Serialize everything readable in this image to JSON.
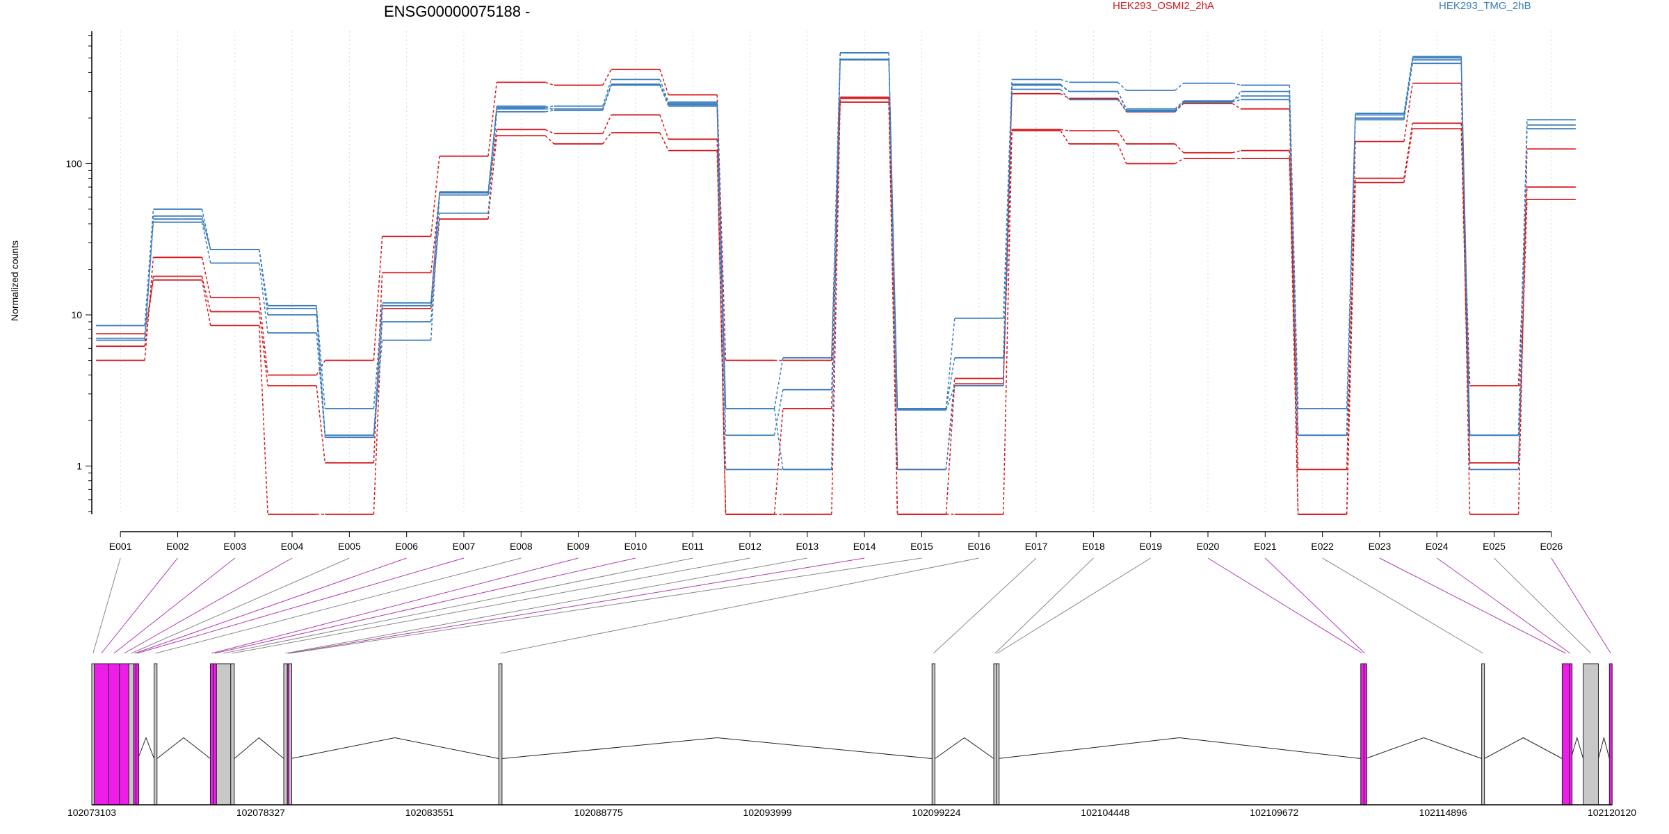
{
  "chart_data": {
    "type": "line",
    "title": "ENSG00000075188 -",
    "ylabel": "Normalized counts",
    "xlabel": "",
    "yscale": "log",
    "ylim": [
      0.48,
      750
    ],
    "grid": "vertical dotted at each exon",
    "legend_placement": "top-right",
    "colors": {
      "HEK293_OSMI2_2hA": "#d7191c",
      "HEK293_TMG_2hB": "#3a7dbd",
      "highlight": "#ee1ee8",
      "gray_exon": "#c8c8c8",
      "link_gray": "#888888",
      "link_magenta": "#b13ab1"
    },
    "yticks": [
      {
        "value": 1,
        "label": "1"
      },
      {
        "value": 10,
        "label": "10"
      },
      {
        "value": 100,
        "label": "100"
      }
    ],
    "categories": [
      "E001",
      "E002",
      "E003",
      "E004",
      "E005",
      "E006",
      "E007",
      "E008",
      "E009",
      "E010",
      "E011",
      "E012",
      "E013",
      "E014",
      "E015",
      "E016",
      "E017",
      "E018",
      "E019",
      "E020",
      "E021",
      "E022",
      "E023",
      "E024",
      "E025",
      "E026"
    ],
    "series": [
      {
        "name": "HEK293_OSMI2_2hA",
        "group": "HEK293_OSMI2_2hA",
        "values": [
          5,
          24,
          13,
          4,
          5,
          33,
          112,
          345,
          330,
          420,
          285,
          5,
          5,
          270,
          0.95,
          3.8,
          168,
          165,
          135,
          118,
          122,
          0.95,
          80,
          185,
          3.4,
          70
        ]
      },
      {
        "name": "HEK293_OSMI2_2hA",
        "group": "HEK293_OSMI2_2hA",
        "values": [
          6.2,
          18,
          10.5,
          3.4,
          1.05,
          19,
          62,
          168,
          158,
          210,
          145,
          0.48,
          0.48,
          255,
          0.48,
          0.48,
          165,
          135,
          100,
          108,
          108,
          0.48,
          75,
          170,
          1.05,
          58
        ]
      },
      {
        "name": "HEK293_OSMI2_2hA",
        "group": "HEK293_OSMI2_2hA",
        "values": [
          7.5,
          17,
          8.5,
          0.48,
          0.48,
          11,
          43,
          153,
          135,
          160,
          122,
          0.48,
          2.4,
          275,
          0.48,
          3.5,
          290,
          270,
          220,
          250,
          230,
          0.48,
          140,
          340,
          0.48,
          125
        ]
      },
      {
        "name": "HEK293_TMG_2hB",
        "group": "HEK293_TMG_2hB",
        "values": [
          8.5,
          50,
          27,
          11.5,
          2.4,
          12,
          64,
          235,
          240,
          360,
          255,
          2.4,
          5.2,
          540,
          2.4,
          9.5,
          360,
          345,
          305,
          340,
          330,
          2.4,
          215,
          510,
          1.6,
          195
        ]
      },
      {
        "name": "HEK293_TMG_2hB",
        "group": "HEK293_TMG_2hB",
        "values": [
          8.5,
          45,
          27,
          10,
          1.6,
          11.5,
          65,
          230,
          230,
          335,
          250,
          1.6,
          3.2,
          485,
          2.4,
          5.2,
          330,
          300,
          230,
          260,
          280,
          1.6,
          210,
          485,
          1.6,
          180
        ]
      },
      {
        "name": "HEK293_TMG_2hB",
        "group": "HEK293_TMG_2hB",
        "values": [
          7,
          41,
          22,
          7.6,
          1.55,
          9,
          47,
          220,
          225,
          330,
          240,
          0.95,
          0.95,
          490,
          2.35,
          3.4,
          310,
          265,
          222,
          255,
          265,
          1.6,
          195,
          460,
          1.6,
          170
        ]
      },
      {
        "name": "HEK293_TMG_2hB",
        "group": "HEK293_TMG_2hB",
        "values": [
          6.8,
          43,
          27,
          11,
          1.6,
          6.8,
          62,
          240,
          225,
          330,
          245,
          2.4,
          0.95,
          540,
          0.95,
          3.4,
          335,
          300,
          225,
          255,
          300,
          1.6,
          200,
          500,
          0.95,
          170
        ]
      }
    ],
    "legend": [
      "HEK293_OSMI2_2hA",
      "HEK293_TMG_2hB"
    ],
    "gene_coords": {
      "start": 102073103,
      "end": 102120120,
      "ticks": [
        102073103,
        102078327,
        102083551,
        102088775,
        102093999,
        102099224,
        102104448,
        102109672,
        102114896,
        102120120
      ]
    },
    "exon_map": [
      {
        "id": "E001",
        "start": 102073103,
        "end": 102073180,
        "highlight": false
      },
      {
        "id": "E002",
        "start": 102073180,
        "end": 102073620,
        "highlight": true
      },
      {
        "id": "E003",
        "start": 102073620,
        "end": 102073960,
        "highlight": true
      },
      {
        "id": "E004",
        "start": 102073960,
        "end": 102074250,
        "highlight": true
      },
      {
        "id": "E005",
        "start": 102074250,
        "end": 102074400,
        "highlight": false
      },
      {
        "id": "E006",
        "start": 102074400,
        "end": 102074470,
        "highlight": true
      },
      {
        "id": "E007",
        "start": 102074470,
        "end": 102074530,
        "highlight": true
      },
      {
        "id": "E008",
        "start": 102075030,
        "end": 102075120,
        "highlight": false
      },
      {
        "id": "E009",
        "start": 102076770,
        "end": 102076860,
        "highlight": true
      },
      {
        "id": "E010",
        "start": 102076860,
        "end": 102076960,
        "highlight": true
      },
      {
        "id": "E011",
        "start": 102076960,
        "end": 102077400,
        "highlight": false
      },
      {
        "id": "E012",
        "start": 102077400,
        "end": 102077510,
        "highlight": false
      },
      {
        "id": "E013",
        "start": 102079040,
        "end": 102079150,
        "highlight": false
      },
      {
        "id": "E014",
        "start": 102079150,
        "end": 102079200,
        "highlight": true
      },
      {
        "id": "E015",
        "start": 102079200,
        "end": 102079260,
        "highlight": false
      },
      {
        "id": "E016",
        "start": 102085690,
        "end": 102085790,
        "highlight": false
      },
      {
        "id": "E017",
        "start": 102099090,
        "end": 102099180,
        "highlight": false
      },
      {
        "id": "E018",
        "start": 102101000,
        "end": 102101080,
        "highlight": false
      },
      {
        "id": "E019",
        "start": 102101080,
        "end": 102101130,
        "highlight": false
      },
      {
        "id": "E020",
        "start": 102112350,
        "end": 102112450,
        "highlight": true
      },
      {
        "id": "E021",
        "start": 102112450,
        "end": 102112500,
        "highlight": true
      },
      {
        "id": "E022",
        "start": 102116090,
        "end": 102116170,
        "highlight": false
      },
      {
        "id": "E023",
        "start": 102118580,
        "end": 102118800,
        "highlight": true
      },
      {
        "id": "E024",
        "start": 102118800,
        "end": 102118850,
        "highlight": true
      },
      {
        "id": "E025",
        "start": 102119230,
        "end": 102119700,
        "highlight": false
      },
      {
        "id": "E026",
        "start": 102120040,
        "end": 102120120,
        "highlight": true
      }
    ],
    "introns": [
      [
        102074530,
        102075030
      ],
      [
        102075120,
        102076770
      ],
      [
        102077510,
        102079040
      ],
      [
        102079260,
        102085690
      ],
      [
        102085790,
        102099090
      ],
      [
        102099180,
        102101000
      ],
      [
        102101130,
        102112350
      ],
      [
        102112500,
        102116090
      ],
      [
        102116170,
        102118580
      ],
      [
        102118850,
        102119230
      ],
      [
        102119700,
        102120040
      ]
    ]
  }
}
